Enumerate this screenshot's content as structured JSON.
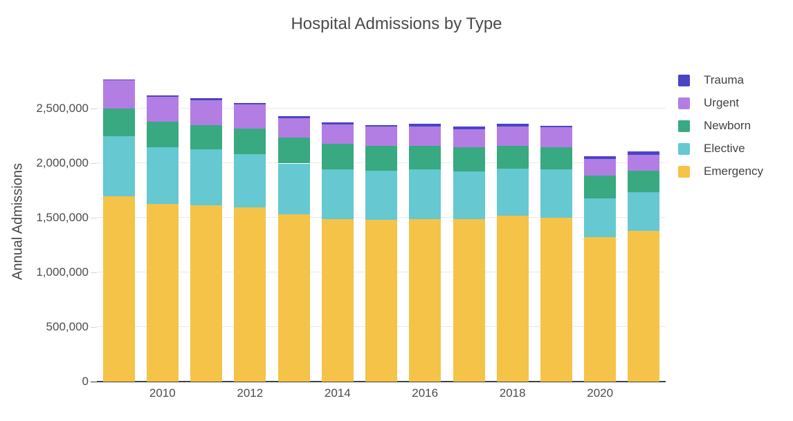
{
  "chart_data": {
    "type": "bar",
    "stacked": true,
    "title": "Hospital Admissions by Type",
    "xlabel": "",
    "ylabel": "Annual Admissions",
    "categories": [
      2009,
      2010,
      2011,
      2012,
      2013,
      2014,
      2015,
      2016,
      2017,
      2018,
      2019,
      2020,
      2021
    ],
    "x_tick_labels": [
      "2010",
      "2012",
      "2014",
      "2016",
      "2018",
      "2020"
    ],
    "y_ticks": [
      0,
      500000,
      1000000,
      1500000,
      2000000,
      2500000
    ],
    "y_tick_labels": [
      "0",
      "500,000",
      "1,000,000",
      "1,500,000",
      "2,000,000",
      "2,500,000"
    ],
    "ylim": [
      0,
      2925000
    ],
    "grid": true,
    "legend_position": "top-right",
    "legend": [
      "Trauma",
      "Urgent",
      "Newborn",
      "Elective",
      "Emergency"
    ],
    "series": [
      {
        "name": "Emergency",
        "color": "#F5C348",
        "values": [
          1695000,
          1630000,
          1612000,
          1597000,
          1533000,
          1487000,
          1480000,
          1490000,
          1489000,
          1521000,
          1501000,
          1325000,
          1383000
        ]
      },
      {
        "name": "Elective",
        "color": "#66C8D0",
        "values": [
          552000,
          514000,
          515000,
          487000,
          465000,
          455000,
          453000,
          455000,
          438000,
          428000,
          441000,
          356000,
          354000
        ]
      },
      {
        "name": "Newborn",
        "color": "#38A981",
        "values": [
          256000,
          236000,
          223000,
          236000,
          236000,
          236000,
          226000,
          216000,
          222000,
          211000,
          204000,
          206000,
          196000
        ]
      },
      {
        "name": "Urgent",
        "color": "#B27EE3",
        "values": [
          262000,
          229000,
          224000,
          217000,
          181000,
          178000,
          176000,
          178000,
          161000,
          179000,
          184000,
          152000,
          142000
        ]
      },
      {
        "name": "Trauma",
        "color": "#4945C6",
        "values": [
          4000,
          11000,
          21000,
          15000,
          19000,
          21000,
          15000,
          21000,
          25000,
          21000,
          13000,
          26000,
          32000
        ]
      }
    ],
    "colors": {
      "background": "#ffffff",
      "gridline": "#e9e9e9",
      "axis_line": "#3f3f3f",
      "tick": "#d4d4d4",
      "text": "#4a4a4a"
    }
  }
}
